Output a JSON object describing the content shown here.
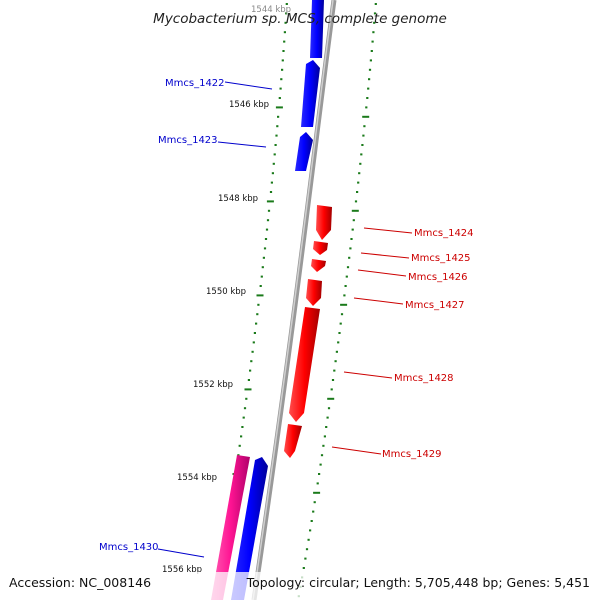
{
  "title": "Mycobacterium sp. MCS, complete genome",
  "footer": {
    "accession": "Accession: NC_008146",
    "summary": "Topology: circular; Length: 5,705,448 bp; Genes: 5,451"
  },
  "ticks": [
    "1544 kbp",
    "1546 kbp",
    "1548 kbp",
    "1550 kbp",
    "1552 kbp",
    "1554 kbp",
    "1556 kbp"
  ],
  "genes": [
    {
      "id": "Mmcs_1422",
      "strand": "forward",
      "color": "#0000ff"
    },
    {
      "id": "Mmcs_1423",
      "strand": "forward",
      "color": "#0000ff"
    },
    {
      "id": "Mmcs_1424",
      "strand": "reverse",
      "color": "#ff0000"
    },
    {
      "id": "Mmcs_1425",
      "strand": "reverse",
      "color": "#ff0000"
    },
    {
      "id": "Mmcs_1426",
      "strand": "reverse",
      "color": "#ff0000"
    },
    {
      "id": "Mmcs_1427",
      "strand": "reverse",
      "color": "#ff0000"
    },
    {
      "id": "Mmcs_1428",
      "strand": "reverse",
      "color": "#ff0000"
    },
    {
      "id": "Mmcs_1429",
      "strand": "reverse",
      "color": "#ff0000"
    },
    {
      "id": "Mmcs_1430",
      "strand": "forward",
      "color": "#0000ff"
    }
  ],
  "colors": {
    "forward_gene": "#0000ff",
    "reverse_gene": "#ff0000",
    "rna_feature": "#ff1493",
    "backbone": "#888888",
    "tick_marks": "#1a7a1a"
  }
}
